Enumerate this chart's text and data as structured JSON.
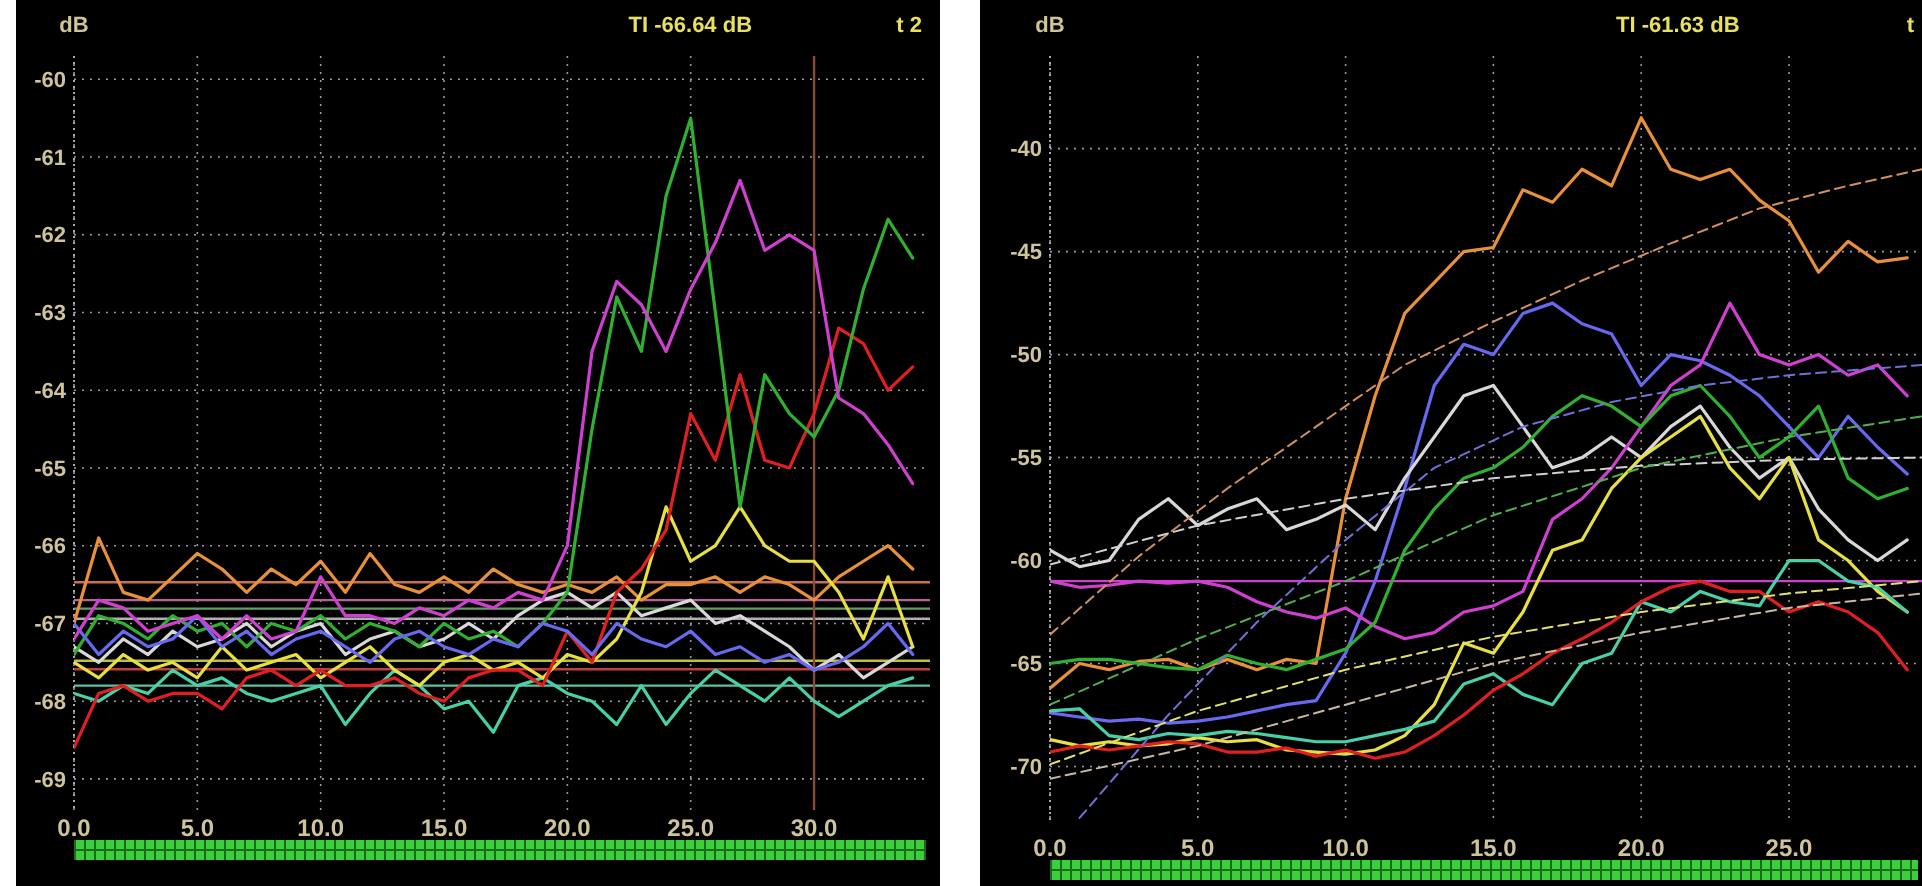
{
  "chart_data": [
    {
      "type": "line",
      "ylabel": "dB",
      "annotations": [
        "TI -66.64 dB",
        "t 2"
      ],
      "x": [
        0,
        1,
        2,
        3,
        4,
        5,
        6,
        7,
        8,
        9,
        10,
        11,
        12,
        13,
        14,
        15,
        16,
        17,
        18,
        19,
        20,
        21,
        22,
        23,
        24,
        25,
        26,
        27,
        28,
        29,
        30,
        31,
        32,
        33,
        34
      ],
      "xlim": [
        0,
        34.7
      ],
      "ylim": [
        -69.4,
        -59.7
      ],
      "xticks": [
        {
          "value": 0,
          "label": "0.0"
        },
        {
          "value": 5,
          "label": "5.0"
        },
        {
          "value": 10,
          "label": "10.0"
        },
        {
          "value": 15,
          "label": "15.0"
        },
        {
          "value": 20,
          "label": "20.0"
        },
        {
          "value": 25,
          "label": "25.0"
        },
        {
          "value": 30,
          "label": "30.0"
        }
      ],
      "yticks": [
        -60,
        -61,
        -62,
        -63,
        -64,
        -65,
        -66,
        -67,
        -68,
        -69
      ],
      "grid": true,
      "series": [
        {
          "color": "#e8903a",
          "values": [
            -67.0,
            -65.9,
            -66.6,
            -66.7,
            -66.4,
            -66.1,
            -66.3,
            -66.6,
            -66.3,
            -66.5,
            -66.2,
            -66.6,
            -66.1,
            -66.5,
            -66.6,
            -66.4,
            -66.6,
            -66.3,
            -66.5,
            -66.6,
            -66.5,
            -66.6,
            -66.4,
            -66.7,
            -66.5,
            -66.5,
            -66.4,
            -66.6,
            -66.4,
            -66.5,
            -66.7,
            -66.4,
            -66.2,
            -66.0,
            -66.3
          ]
        },
        {
          "color": "#48d0a8",
          "values": [
            -67.9,
            -68.0,
            -67.8,
            -67.9,
            -67.6,
            -67.8,
            -67.7,
            -67.9,
            -68.0,
            -67.9,
            -67.8,
            -68.3,
            -67.9,
            -67.6,
            -67.8,
            -68.1,
            -68.0,
            -68.4,
            -67.8,
            -67.7,
            -67.9,
            -68.0,
            -68.3,
            -67.8,
            -68.3,
            -67.9,
            -67.6,
            -67.8,
            -68.0,
            -67.7,
            -68.0,
            -68.2,
            -68.0,
            -67.8,
            -67.7
          ]
        },
        {
          "color": "#d8d8d8",
          "values": [
            -67.3,
            -67.5,
            -67.2,
            -67.4,
            -67.1,
            -67.3,
            -67.2,
            -67.0,
            -67.3,
            -67.1,
            -67.0,
            -67.4,
            -67.2,
            -67.1,
            -67.3,
            -67.2,
            -67.0,
            -67.2,
            -66.9,
            -66.7,
            -66.6,
            -66.8,
            -66.6,
            -66.9,
            -66.8,
            -66.7,
            -67.0,
            -66.9,
            -67.1,
            -67.3,
            -67.6,
            -67.4,
            -67.7,
            -67.5,
            -67.3
          ]
        },
        {
          "color": "#e8e040",
          "values": [
            -67.5,
            -67.7,
            -67.4,
            -67.6,
            -67.5,
            -67.7,
            -67.3,
            -67.6,
            -67.5,
            -67.4,
            -67.7,
            -67.5,
            -67.3,
            -67.6,
            -67.8,
            -67.5,
            -67.4,
            -67.6,
            -67.5,
            -67.7,
            -67.4,
            -67.5,
            -67.2,
            -66.6,
            -65.5,
            -66.2,
            -66.0,
            -65.5,
            -66.0,
            -66.2,
            -66.2,
            -66.6,
            -67.2,
            -66.4,
            -67.3
          ]
        },
        {
          "color": "#e02020",
          "values": [
            -68.6,
            -67.9,
            -67.8,
            -68.0,
            -67.9,
            -67.9,
            -68.1,
            -67.7,
            -67.6,
            -67.8,
            -67.6,
            -67.8,
            -67.8,
            -67.7,
            -67.9,
            -68.0,
            -67.7,
            -67.6,
            -67.6,
            -67.8,
            -67.1,
            -67.5,
            -66.6,
            -66.3,
            -65.8,
            -64.3,
            -64.9,
            -63.8,
            -64.9,
            -65.0,
            -64.3,
            -63.2,
            -63.4,
            -64.0,
            -63.7
          ]
        },
        {
          "color": "#30b030",
          "values": [
            -67.4,
            -66.9,
            -67.0,
            -67.2,
            -66.9,
            -67.1,
            -67.0,
            -67.3,
            -67.0,
            -67.1,
            -66.9,
            -67.2,
            -67.0,
            -67.1,
            -67.3,
            -67.0,
            -67.2,
            -67.1,
            -67.3,
            -67.0,
            -66.6,
            -64.5,
            -62.8,
            -63.5,
            -61.5,
            -60.5,
            -63.0,
            -65.5,
            -63.8,
            -64.3,
            -64.6,
            -64.0,
            -62.7,
            -61.8,
            -62.3
          ]
        },
        {
          "color": "#6868f0",
          "values": [
            -67.0,
            -67.4,
            -67.1,
            -67.3,
            -67.2,
            -66.9,
            -67.3,
            -67.1,
            -67.4,
            -67.2,
            -67.1,
            -67.3,
            -67.5,
            -67.2,
            -67.1,
            -67.3,
            -67.4,
            -67.2,
            -67.3,
            -67.0,
            -67.1,
            -67.4,
            -67.0,
            -67.2,
            -67.3,
            -67.1,
            -67.4,
            -67.3,
            -67.5,
            -67.4,
            -67.6,
            -67.5,
            -67.3,
            -67.0,
            -67.4
          ]
        },
        {
          "color": "#d040d0",
          "values": [
            -67.2,
            -66.7,
            -66.8,
            -67.1,
            -67.0,
            -66.9,
            -67.2,
            -66.9,
            -67.2,
            -67.1,
            -66.4,
            -66.9,
            -66.9,
            -67.0,
            -66.8,
            -66.9,
            -66.7,
            -66.8,
            -66.6,
            -66.7,
            -66.0,
            -63.5,
            -62.6,
            -62.9,
            -63.5,
            -62.7,
            -62.1,
            -61.3,
            -62.2,
            -62.0,
            -62.2,
            -64.1,
            -64.3,
            -64.7,
            -65.2
          ]
        }
      ],
      "ref_lines": [
        {
          "axis": "y",
          "value": -66.47,
          "color": "#c87050"
        },
        {
          "axis": "y",
          "value": -66.7,
          "color": "#b860a0"
        },
        {
          "axis": "y",
          "value": -66.81,
          "color": "#60a060"
        },
        {
          "axis": "y",
          "value": -66.94,
          "color": "#b0b0b0"
        },
        {
          "axis": "y",
          "value": -67.48,
          "color": "#c0c040"
        },
        {
          "axis": "y",
          "value": -67.59,
          "color": "#c04040"
        },
        {
          "axis": "y",
          "value": -67.8,
          "color": "#60c0a0"
        },
        {
          "axis": "x",
          "value": 30,
          "color": "#8a4a3a"
        }
      ]
    },
    {
      "type": "line",
      "ylabel": "dB",
      "annotations": [
        "TI -61.63 dB",
        "t"
      ],
      "x": [
        0,
        1,
        2,
        3,
        4,
        5,
        6,
        7,
        8,
        9,
        10,
        11,
        12,
        13,
        14,
        15,
        16,
        17,
        18,
        19,
        20,
        21,
        22,
        23,
        24,
        25,
        26,
        27,
        28,
        29
      ],
      "xlim": [
        0,
        29.5
      ],
      "ylim": [
        -72.6,
        -35.5
      ],
      "xticks": [
        {
          "value": 0,
          "label": "0.0"
        },
        {
          "value": 5,
          "label": "5.0"
        },
        {
          "value": 10,
          "label": "10.0"
        },
        {
          "value": 15,
          "label": "15.0"
        },
        {
          "value": 20,
          "label": "20.0"
        },
        {
          "value": 25,
          "label": "25.0"
        }
      ],
      "yticks": [
        -40,
        -45,
        -50,
        -55,
        -60,
        -65,
        -70
      ],
      "grid": true,
      "series": [
        {
          "color": "#e8903a",
          "values": [
            -66.2,
            -65.0,
            -65.3,
            -64.9,
            -64.8,
            -65.3,
            -64.8,
            -65.3,
            -64.8,
            -65.0,
            -57.0,
            -52.0,
            -48.0,
            -46.5,
            -45.0,
            -44.8,
            -42.0,
            -42.6,
            -41.0,
            -41.8,
            -38.5,
            -41.0,
            -41.5,
            -41.0,
            -42.5,
            -43.5,
            -46.0,
            -44.5,
            -45.5,
            -45.3
          ]
        },
        {
          "color": "#6868f0",
          "values": [
            -67.4,
            -67.6,
            -67.8,
            -67.7,
            -67.9,
            -67.8,
            -67.6,
            -67.3,
            -67.0,
            -66.8,
            -64.5,
            -61.0,
            -56.5,
            -51.5,
            -49.5,
            -50.0,
            -48.0,
            -47.5,
            -48.5,
            -49.0,
            -51.5,
            -50.0,
            -50.3,
            -51.0,
            -52.0,
            -53.5,
            -55.0,
            -53.0,
            -54.5,
            -55.8
          ]
        },
        {
          "color": "#d8d8d8",
          "values": [
            -59.5,
            -60.3,
            -60.0,
            -58.0,
            -57.0,
            -58.3,
            -57.5,
            -57.0,
            -58.5,
            -58.0,
            -57.3,
            -58.5,
            -56.0,
            -54.0,
            -52.0,
            -51.5,
            -53.5,
            -55.5,
            -55.0,
            -54.0,
            -55.0,
            -53.5,
            -52.5,
            -54.5,
            -56.0,
            -55.0,
            -57.5,
            -59.0,
            -60.0,
            -59.0
          ]
        },
        {
          "color": "#d040d0",
          "values": [
            -61.0,
            -61.3,
            -61.2,
            -61.0,
            -61.1,
            -61.0,
            -61.3,
            -62.0,
            -62.5,
            -62.8,
            -62.3,
            -63.2,
            -63.8,
            -63.5,
            -62.5,
            -62.2,
            -61.5,
            -58.0,
            -57.0,
            -55.5,
            -53.5,
            -51.5,
            -50.5,
            -47.5,
            -50.0,
            -50.5,
            -50.0,
            -51.0,
            -50.5,
            -52.0
          ]
        },
        {
          "color": "#30b030",
          "values": [
            -65.0,
            -64.8,
            -64.8,
            -65.0,
            -65.2,
            -65.3,
            -64.6,
            -65.0,
            -65.3,
            -64.8,
            -64.3,
            -63.0,
            -59.5,
            -57.5,
            -56.0,
            -55.5,
            -54.5,
            -53.0,
            -52.0,
            -52.5,
            -53.5,
            -52.0,
            -51.5,
            -53.0,
            -55.0,
            -54.0,
            -52.5,
            -56.0,
            -57.0,
            -56.5
          ]
        },
        {
          "color": "#e8e040",
          "values": [
            -68.7,
            -69.0,
            -68.8,
            -69.0,
            -68.9,
            -68.6,
            -68.8,
            -68.7,
            -69.2,
            -69.3,
            -69.4,
            -69.2,
            -68.5,
            -67.0,
            -64.0,
            -64.5,
            -62.5,
            -59.5,
            -59.0,
            -56.5,
            -55.0,
            -54.0,
            -53.0,
            -55.5,
            -57.0,
            -55.0,
            -59.0,
            -60.0,
            -61.5,
            -62.5
          ]
        },
        {
          "color": "#48d0a8",
          "values": [
            -67.3,
            -67.2,
            -68.5,
            -68.7,
            -68.4,
            -68.5,
            -68.3,
            -68.4,
            -68.6,
            -68.8,
            -68.8,
            -68.5,
            -68.2,
            -67.8,
            -66.0,
            -65.5,
            -66.5,
            -67.0,
            -65.0,
            -64.5,
            -62.0,
            -62.5,
            -61.5,
            -62.0,
            -62.2,
            -60.0,
            -60.0,
            -61.0,
            -61.3,
            -62.5
          ]
        },
        {
          "color": "#e02020",
          "values": [
            -69.3,
            -69.0,
            -69.2,
            -69.0,
            -68.8,
            -68.9,
            -69.3,
            -69.3,
            -69.1,
            -69.5,
            -69.2,
            -69.6,
            -69.3,
            -68.5,
            -67.5,
            -66.3,
            -65.5,
            -64.5,
            -63.8,
            -63.0,
            -62.0,
            -61.3,
            -61.0,
            -61.5,
            -61.5,
            -62.5,
            -62.0,
            -62.5,
            -63.5,
            -65.3
          ]
        },
        {
          "color": "#d09060",
          "line_style": "dashed",
          "x": [
            0,
            3,
            6,
            9,
            12,
            15,
            18,
            21,
            24,
            27,
            29.5
          ],
          "values": [
            -63.6,
            -59.8,
            -56.5,
            -53.5,
            -50.5,
            -48.4,
            -46.4,
            -44.6,
            -42.9,
            -41.8,
            -41.0
          ]
        },
        {
          "color": "#7070d8",
          "line_style": "dashed",
          "x": [
            1,
            4,
            7,
            10,
            13,
            16,
            19,
            22,
            25,
            29.5
          ],
          "values": [
            -72.5,
            -67.5,
            -63.0,
            -59.0,
            -55.5,
            -53.5,
            -52.3,
            -51.5,
            -51.0,
            -50.5
          ]
        },
        {
          "color": "#d0d0d0",
          "line_style": "dashed",
          "x": [
            0,
            5,
            10,
            15,
            20,
            25,
            29.5
          ],
          "values": [
            -60.2,
            -58.3,
            -57.0,
            -56.0,
            -55.4,
            -55.1,
            -55.0
          ]
        },
        {
          "color": "#50b050",
          "line_style": "dashed",
          "x": [
            0,
            5,
            10,
            15,
            20,
            25,
            29.5
          ],
          "values": [
            -67.0,
            -63.8,
            -61.0,
            -57.8,
            -55.5,
            -54.0,
            -53.0
          ]
        },
        {
          "color": "#e0e070",
          "line_style": "dashed",
          "x": [
            0,
            5,
            10,
            15,
            20,
            25,
            29.5
          ],
          "values": [
            -69.9,
            -67.3,
            -65.3,
            -63.7,
            -62.5,
            -61.6,
            -61.0
          ]
        },
        {
          "color": "#c8b8a0",
          "line_style": "dashed",
          "x": [
            0,
            5,
            10,
            15,
            20,
            25,
            29.5
          ],
          "values": [
            -70.6,
            -69.0,
            -67.0,
            -65.0,
            -63.5,
            -62.3,
            -61.6
          ]
        }
      ],
      "ref_lines": [
        {
          "axis": "y",
          "value": -61,
          "color": "#d040d0"
        }
      ]
    }
  ]
}
